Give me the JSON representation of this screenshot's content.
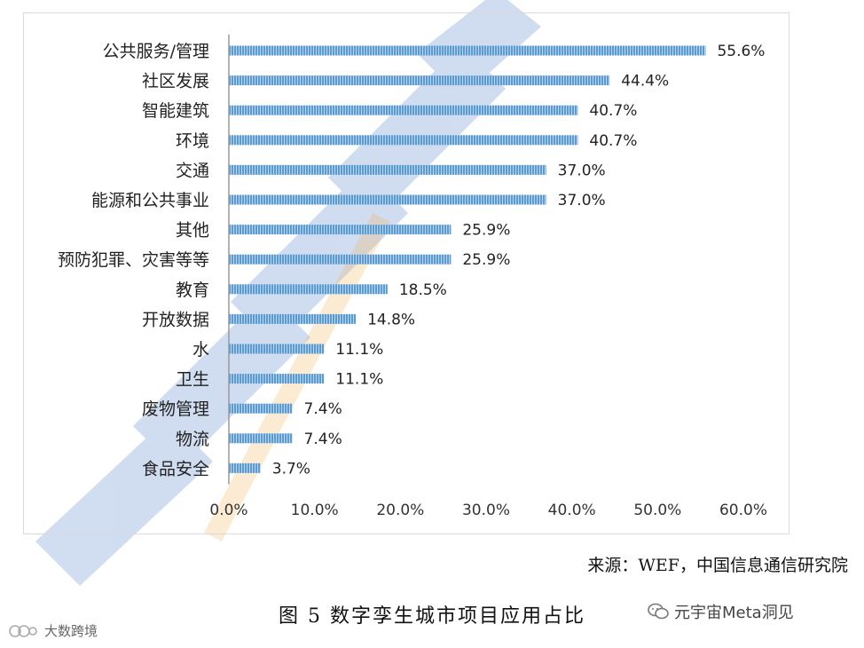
{
  "chart_data": {
    "type": "bar",
    "orientation": "horizontal",
    "categories": [
      "公共服务/管理",
      "社区发展",
      "智能建筑",
      "环境",
      "交通",
      "能源和公共事业",
      "其他",
      "预防犯罪、灾害等等",
      "教育",
      "开放数据",
      "水",
      "卫生",
      "废物管理",
      "物流",
      "食品安全"
    ],
    "values": [
      55.6,
      44.4,
      40.7,
      40.7,
      37.0,
      37.0,
      25.9,
      25.9,
      18.5,
      14.8,
      11.1,
      11.1,
      7.4,
      7.4,
      3.7
    ],
    "data_labels": [
      "55.6%",
      "44.4%",
      "40.7%",
      "40.7%",
      "37.0%",
      "37.0%",
      "25.9%",
      "25.9%",
      "18.5%",
      "14.8%",
      "11.1%",
      "11.1%",
      "7.4%",
      "7.4%",
      "3.7%"
    ],
    "xlim": [
      0,
      60
    ],
    "x_ticks": [
      "0.0%",
      "10.0%",
      "20.0%",
      "30.0%",
      "40.0%",
      "50.0%",
      "60.0%"
    ],
    "grid": false,
    "bar_color": "#5b9bd5"
  },
  "source_text": "来源：WEF，中国信息通信研究院",
  "caption": "图 5 数字孪生城市项目应用占比",
  "watermark_brand": "元宇宙Meta洞见",
  "watermark_left": "大数跨境"
}
